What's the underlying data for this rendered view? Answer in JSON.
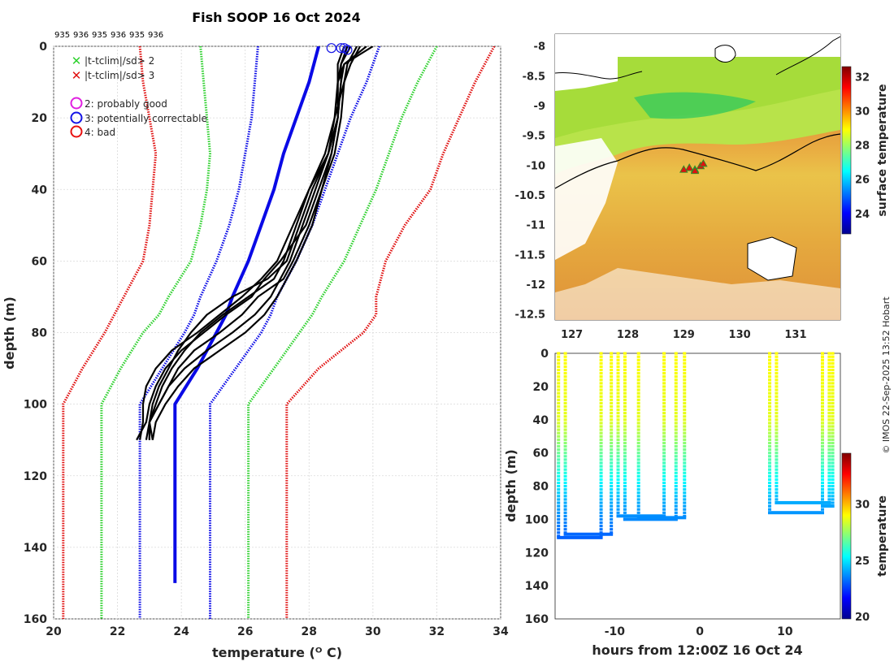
{
  "colors": {
    "sd2": "#2ed12e",
    "sd3": "#e01010",
    "climatology": "#0a0ae6",
    "profiles": "#000000",
    "q2": "#e020e0",
    "q3": "#1414e6",
    "q4": "#e81010"
  },
  "chart_data": [
    {
      "type": "line",
      "name": "profile-panel",
      "title": "Fish SOOP 16 Oct 2024",
      "cast_ids": [
        "935",
        "936",
        "935",
        "936",
        "935",
        "936"
      ],
      "xlabel": "temperature (ᴼ C)",
      "ylabel": "depth (m)",
      "xlim": [
        20,
        34
      ],
      "ylim": [
        160,
        0
      ],
      "xticks": [
        "20",
        "22",
        "24",
        "26",
        "28",
        "30",
        "32",
        "34"
      ],
      "yticks": [
        "0",
        "20",
        "40",
        "60",
        "80",
        "100",
        "120",
        "140",
        "160"
      ],
      "legend": [
        {
          "marker": "x",
          "color_key": "sd2",
          "label": "|t-tclim|/sd> 2"
        },
        {
          "marker": "x",
          "color_key": "sd3",
          "label": "|t-tclim|/sd> 3"
        },
        {
          "marker": "o",
          "color_key": "q2",
          "label": "2: probably good"
        },
        {
          "marker": "o",
          "color_key": "q3",
          "label": "3: potentially correctable"
        },
        {
          "marker": "o",
          "color_key": "q4",
          "label": "4: bad"
        }
      ],
      "depths": [
        0,
        10,
        20,
        30,
        40,
        50,
        60,
        70,
        75,
        80,
        90,
        100,
        110,
        120,
        150,
        160
      ],
      "series": [
        {
          "name": "climatology mean",
          "color_key": "climatology",
          "style": "solid",
          "width": 4,
          "values": [
            28.3,
            28.0,
            27.6,
            27.2,
            26.9,
            26.5,
            26.1,
            25.6,
            25.4,
            25.1,
            24.5,
            23.8,
            23.8,
            23.8,
            23.8,
            null
          ]
        },
        {
          "name": "mean -1 sd",
          "color_key": "climatology",
          "style": "dotted",
          "values": [
            26.4,
            26.3,
            26.2,
            26.0,
            25.8,
            25.5,
            25.1,
            24.6,
            24.4,
            24.1,
            23.4,
            22.7,
            22.7,
            22.7,
            22.7,
            22.7
          ]
        },
        {
          "name": "mean +1 sd",
          "color_key": "climatology",
          "style": "dotted",
          "values": [
            30.2,
            29.8,
            29.3,
            28.9,
            28.5,
            28.1,
            27.6,
            27.0,
            26.8,
            26.5,
            25.7,
            24.9,
            24.9,
            24.9,
            24.9,
            24.9
          ]
        },
        {
          "name": "mean -2 sd",
          "color_key": "sd2",
          "style": "dotted",
          "values": [
            24.6,
            24.7,
            24.8,
            24.9,
            24.8,
            24.6,
            24.3,
            23.6,
            23.3,
            22.8,
            22.1,
            21.5,
            21.5,
            21.5,
            21.5,
            21.5
          ]
        },
        {
          "name": "mean +2 sd",
          "color_key": "sd2",
          "style": "dotted",
          "values": [
            32.0,
            31.4,
            30.9,
            30.5,
            30.1,
            29.6,
            29.1,
            28.4,
            28.1,
            27.7,
            26.9,
            26.1,
            26.1,
            26.1,
            26.1,
            26.1
          ]
        },
        {
          "name": "mean -3 sd",
          "color_key": "sd3",
          "style": "dotted",
          "values": [
            22.7,
            22.8,
            23.0,
            23.2,
            23.1,
            23.0,
            22.8,
            22.2,
            21.9,
            21.6,
            20.9,
            20.3,
            20.3,
            20.3,
            20.3,
            20.3
          ]
        },
        {
          "name": "mean +3 sd",
          "color_key": "sd3",
          "style": "dotted",
          "values": [
            33.8,
            33.2,
            32.7,
            32.2,
            31.8,
            31.0,
            30.4,
            30.1,
            30.1,
            29.7,
            28.3,
            27.3,
            27.3,
            27.3,
            27.3,
            27.3
          ]
        }
      ],
      "profiles_depth": [
        0,
        5,
        10,
        20,
        30,
        40,
        50,
        60,
        65,
        70,
        75,
        80,
        85,
        90,
        95,
        100,
        105,
        110
      ],
      "profiles": [
        [
          29.2,
          29.0,
          29.0,
          28.9,
          28.7,
          28.3,
          27.9,
          27.1,
          26.6,
          26.2,
          25.4,
          24.7,
          24.0,
          23.5,
          23.2,
          23.0,
          22.9,
          22.6
        ],
        [
          30.0,
          29.1,
          28.9,
          28.8,
          28.6,
          28.1,
          27.7,
          27.3,
          26.7,
          25.6,
          24.8,
          24.3,
          23.9,
          23.6,
          23.3,
          23.1,
          23.0,
          23.1
        ],
        [
          29.5,
          29.2,
          29.1,
          29.0,
          28.8,
          28.4,
          28.0,
          27.5,
          27.2,
          26.4,
          25.9,
          25.2,
          24.4,
          23.9,
          23.6,
          23.3,
          23.0,
          23.0
        ],
        [
          29.8,
          29.1,
          29.0,
          28.9,
          28.6,
          28.0,
          27.6,
          27.2,
          26.9,
          26.1,
          25.3,
          24.6,
          24.1,
          23.7,
          23.4,
          23.2,
          23.0,
          23.0
        ],
        [
          29.3,
          29.0,
          28.9,
          28.9,
          28.6,
          28.2,
          27.8,
          27.4,
          27.1,
          26.8,
          26.3,
          25.6,
          24.8,
          24.1,
          23.6,
          23.3,
          23.0,
          22.9
        ],
        [
          29.6,
          29.3,
          29.1,
          28.8,
          28.5,
          28.0,
          27.5,
          27.0,
          26.5,
          25.9,
          25.2,
          24.5,
          23.7,
          23.2,
          22.9,
          22.8,
          22.8,
          22.7
        ],
        [
          29.1,
          28.9,
          28.9,
          28.9,
          28.7,
          28.4,
          28.1,
          27.6,
          27.3,
          27.0,
          26.6,
          26.0,
          25.2,
          24.4,
          23.9,
          23.5,
          23.2,
          23.1
        ]
      ],
      "flag_points": [
        {
          "t": 28.7,
          "d": 0.5,
          "color_key": "q3"
        },
        {
          "t": 29.0,
          "d": 0.5,
          "color_key": "q3"
        },
        {
          "t": 29.1,
          "d": 0.5,
          "color_key": "q3"
        },
        {
          "t": 29.2,
          "d": 1.0,
          "color_key": "q3"
        }
      ]
    },
    {
      "type": "heatmap",
      "name": "sst-map",
      "colorbar_label": "surface temperature",
      "colorbar_range": [
        22.8,
        32.6
      ],
      "colorbar_ticks": [
        "24",
        "26",
        "28",
        "30",
        "32"
      ],
      "x_ticks": [
        "127",
        "128",
        "129",
        "130",
        "131"
      ],
      "y_ticks": [
        "-8",
        "-8.5",
        "-9",
        "-9.5",
        "-10",
        "-10.5",
        "-11",
        "-11.5",
        "-12",
        "-12.5"
      ],
      "xlim": [
        126.7,
        131.8
      ],
      "ylim": [
        -12.6,
        -7.8
      ],
      "track_lon": [
        129.1,
        129.2,
        129.3,
        129.35,
        129.2,
        129.0
      ],
      "track_lat": [
        -10.05,
        -10.08,
        -10.02,
        -9.98,
        -10.1,
        -10.08
      ]
    },
    {
      "type": "scatter",
      "name": "section",
      "xlabel": "hours from 12:00Z 16 Oct 24",
      "ylabel": "depth (m)",
      "colorbar_label": "temperature",
      "colorbar_range": [
        19.8,
        34.5
      ],
      "colorbar_ticks": [
        "20",
        "25",
        "30"
      ],
      "xlim": [
        -17,
        16.5
      ],
      "ylim": [
        160,
        0
      ],
      "xticks": [
        "-10",
        "0",
        "10"
      ],
      "yticks": [
        "0",
        "20",
        "40",
        "60",
        "80",
        "100",
        "120",
        "140",
        "160"
      ],
      "casts": [
        {
          "down": -16.6,
          "up": -11.6,
          "max_depth": 111
        },
        {
          "down": -15.8,
          "up": -10.4,
          "max_depth": 109
        },
        {
          "down": -9.6,
          "up": -4.2,
          "max_depth": 98
        },
        {
          "down": -8.8,
          "up": -2.8,
          "max_depth": 100
        },
        {
          "down": -7.2,
          "up": -1.8,
          "max_depth": 99
        },
        {
          "down": 8.2,
          "up": 14.4,
          "max_depth": 96
        },
        {
          "down": 9.0,
          "up": 15.2,
          "max_depth": 90
        },
        {
          "down": 14.4,
          "up": 15.6,
          "max_depth": 92
        }
      ]
    }
  ],
  "credit": "© IMOS 22-Sep-2025 13:52 Hobart"
}
